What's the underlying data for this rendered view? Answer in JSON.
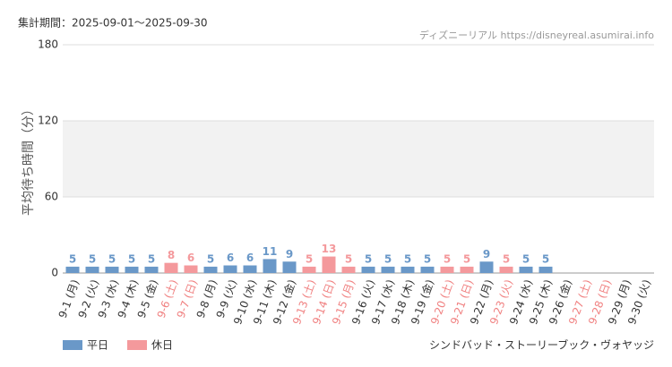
{
  "chart_data": {
    "type": "bar",
    "title": "集計期間：2025-09-01～2025-09-30",
    "source": "ディズニーリアル https://disneyreal.asumirai.info",
    "y_label": "平均待ち時間（分）",
    "footer": "シンドバッド・ストーリーブック・ヴォヤッジ",
    "categories": [
      "9-1 (月)",
      "9-2 (火)",
      "9-3 (水)",
      "9-4 (木)",
      "9-5 (金)",
      "9-6 (土)",
      "9-7 (日)",
      "9-8 (月)",
      "9-9 (火)",
      "9-10 (水)",
      "9-11 (木)",
      "9-12 (金)",
      "9-13 (土)",
      "9-14 (日)",
      "9-15 (月)",
      "9-16 (火)",
      "9-17 (水)",
      "9-18 (木)",
      "9-19 (金)",
      "9-20 (土)",
      "9-21 (日)",
      "9-22 (月)",
      "9-23 (火)",
      "9-24 (水)",
      "9-25 (木)",
      "9-26 (金)",
      "9-27 (土)",
      "9-28 (日)",
      "9-29 (月)",
      "9-30 (火)"
    ],
    "label_colors": [
      "#333",
      "#333",
      "#333",
      "#333",
      "#333",
      "#f08080",
      "#f08080",
      "#333",
      "#333",
      "#333",
      "#333",
      "#333",
      "#f08080",
      "#f08080",
      "#f08080",
      "#333",
      "#333",
      "#333",
      "#333",
      "#f08080",
      "#f08080",
      "#333",
      "#f08080",
      "#333",
      "#333",
      "#333",
      "#f08080",
      "#f08080",
      "#333",
      "#333"
    ],
    "series": [
      {
        "name": "平日",
        "color": "#6a98c8",
        "values": [
          5,
          5,
          5,
          5,
          5,
          null,
          null,
          5,
          6,
          6,
          11,
          9,
          null,
          null,
          null,
          5,
          5,
          5,
          5,
          null,
          null,
          9,
          null,
          5,
          5,
          null,
          null,
          null,
          null,
          null
        ]
      },
      {
        "name": "休日",
        "color": "#f4999c",
        "values": [
          null,
          null,
          null,
          null,
          null,
          8,
          6,
          null,
          null,
          null,
          null,
          null,
          5,
          13,
          5,
          null,
          null,
          null,
          null,
          5,
          5,
          null,
          5,
          null,
          null,
          null,
          null,
          null,
          null,
          null
        ]
      }
    ],
    "ylim": [
      0,
      180
    ],
    "yticks": [
      0,
      60,
      120,
      180
    ],
    "shaded_range": [
      60,
      120
    ],
    "grid": true
  }
}
